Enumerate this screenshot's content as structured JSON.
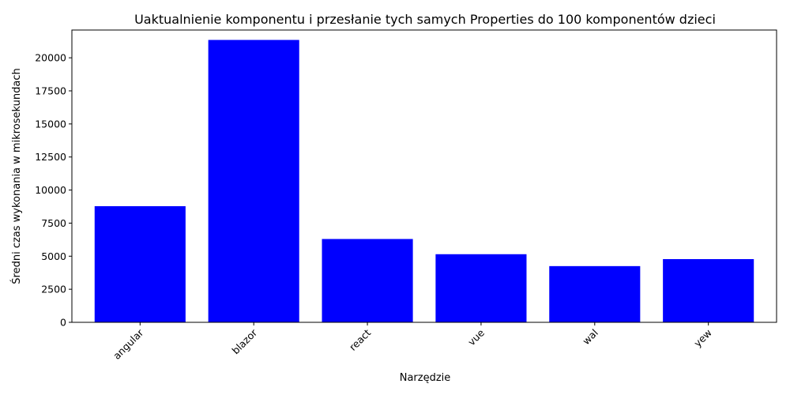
{
  "chart_data": {
    "type": "bar",
    "title": "Uaktualnienie komponentu i przesłanie tych samych Properties do 100 komponentów dzieci",
    "xlabel": "Narzędzie",
    "ylabel": "Średni czas wykonania w mikrosekundach",
    "categories": [
      "angular",
      "blazor",
      "react",
      "vue",
      "wal",
      "yew"
    ],
    "values": [
      8780,
      21350,
      6300,
      5150,
      4250,
      4780
    ],
    "ylim": [
      0,
      22100
    ],
    "yticks": [
      0,
      2500,
      5000,
      7500,
      10000,
      12500,
      15000,
      17500,
      20000
    ],
    "bar_color": "#0000ff",
    "grid": false,
    "xtick_rotation": 45
  }
}
